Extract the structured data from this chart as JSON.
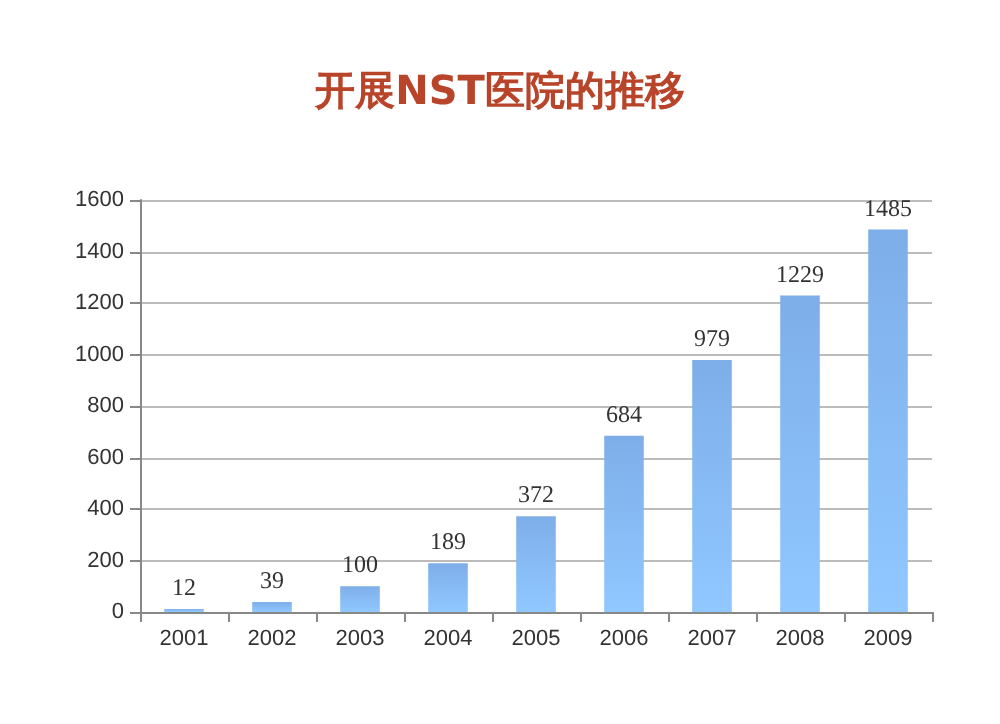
{
  "chart_data": {
    "type": "bar",
    "title": "开展NST医院的推移",
    "categories": [
      "2001",
      "2002",
      "2003",
      "2004",
      "2005",
      "2006",
      "2007",
      "2008",
      "2009"
    ],
    "values": [
      12,
      39,
      100,
      189,
      372,
      684,
      979,
      1229,
      1485
    ],
    "color": "#7eaee8",
    "ylim": [
      0,
      1600
    ],
    "yticks": [
      0,
      200,
      400,
      600,
      800,
      1000,
      1200,
      1400,
      1600
    ],
    "grid": "y",
    "data_labels": true
  }
}
